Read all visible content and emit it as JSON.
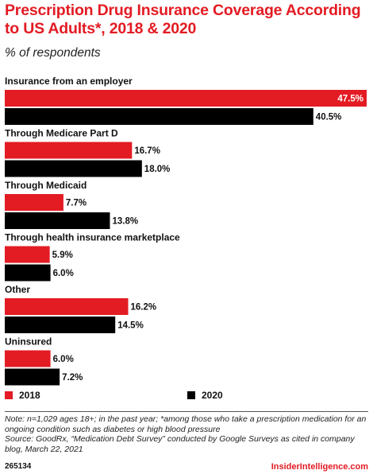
{
  "header": {
    "title": "Prescription Drug Insurance Coverage According to US Adults*, 2018 & 2020",
    "subtitle": "% of respondents"
  },
  "colors": {
    "series_2018": "#e31b23",
    "series_2020": "#000000"
  },
  "chart_data": {
    "type": "bar",
    "orientation": "horizontal",
    "categories": [
      "Insurance from an employer",
      "Through Medicare Part D",
      "Through Medicaid",
      "Through health insurance marketplace",
      "Other",
      "Uninsured"
    ],
    "series": [
      {
        "name": "2018",
        "color": "#e31b23",
        "values": [
          47.5,
          16.7,
          7.7,
          5.9,
          16.2,
          6.0
        ],
        "labels": [
          "47.5%",
          "16.7%",
          "7.7%",
          "5.9%",
          "16.2%",
          "6.0%"
        ]
      },
      {
        "name": "2020",
        "color": "#000000",
        "values": [
          40.5,
          18.0,
          13.8,
          6.0,
          14.5,
          7.2
        ],
        "labels": [
          "40.5%",
          "18.0%",
          "13.8%",
          "6.0%",
          "14.5%",
          "7.2%"
        ]
      }
    ],
    "xlim": [
      0,
      47.5
    ],
    "grid": false,
    "legend_position": "bottom"
  },
  "legend": {
    "label_2018": "2018",
    "label_2020": "2020"
  },
  "footer": {
    "note": "Note: n=1,029 ages 18+; in the past year; *among those who take a prescription medication for an ongoing condition such as diabetes or high blood pressure",
    "source": "Source: GoodRx, “Medication Debt Survey” conducted by Google Surveys as cited in company blog, March 22, 2021",
    "chart_id": "265134",
    "brand": "InsiderIntelligence.com"
  }
}
